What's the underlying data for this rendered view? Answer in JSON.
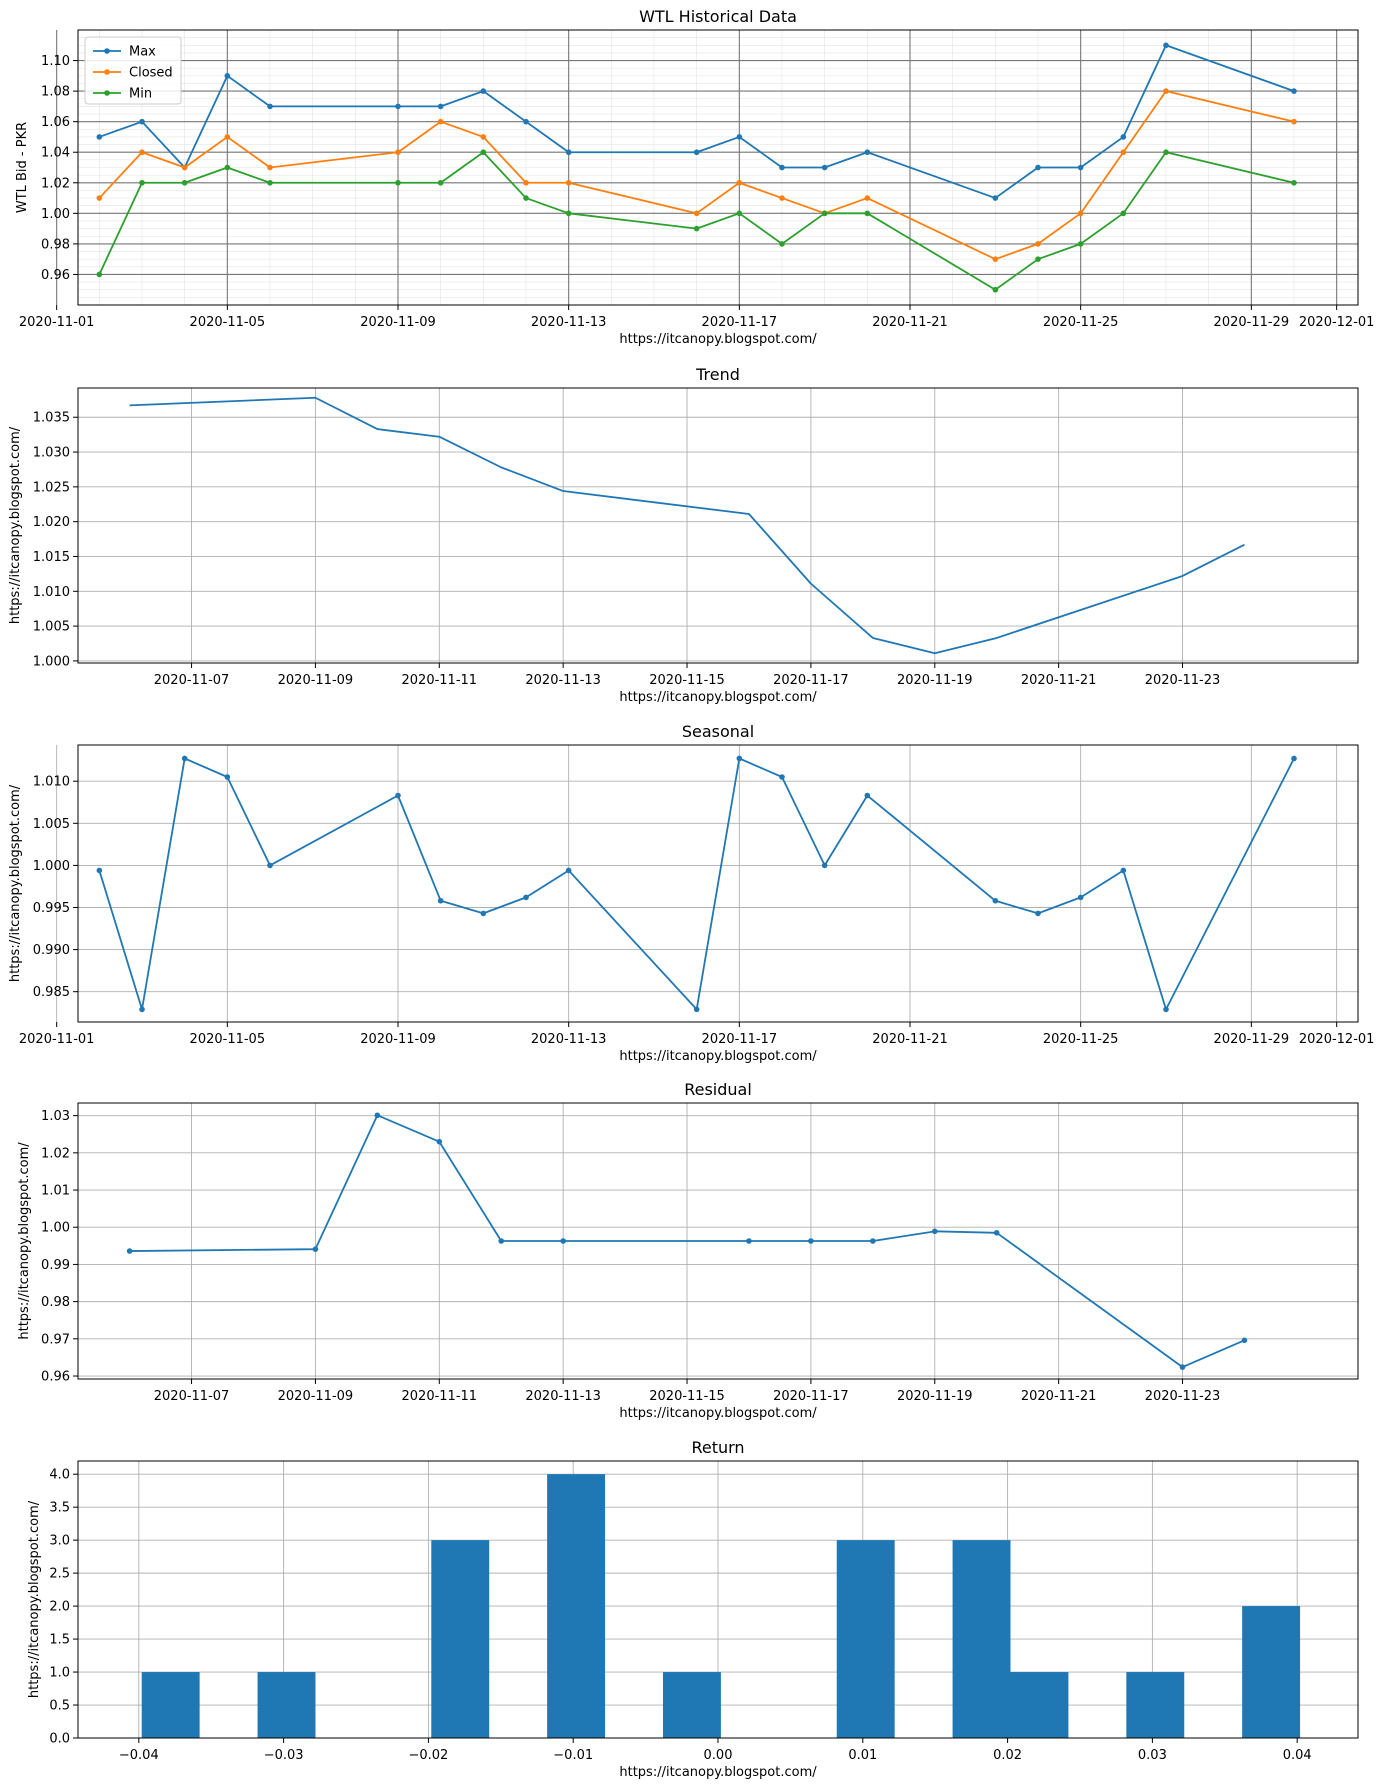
{
  "chart_data": [
    {
      "id": "historical",
      "type": "line",
      "title": "WTL Historical Data",
      "xlabel": "https://itcanopy.blogspot.com/",
      "ylabel": "WTL Bid - PKR",
      "xlim": [
        "2020-11-01T12:00",
        "2020-12-01T12:00"
      ],
      "ylim": [
        0.94,
        1.12
      ],
      "xticks": [
        "2020-11-01",
        "2020-11-05",
        "2020-11-09",
        "2020-11-13",
        "2020-11-17",
        "2020-11-21",
        "2020-11-25",
        "2020-11-29",
        "2020-12-01"
      ],
      "yticks": [
        0.96,
        0.98,
        1.0,
        1.02,
        1.04,
        1.06,
        1.08,
        1.1
      ],
      "ytick_decimals": 2,
      "grid": "major and minor",
      "legend": "top-left",
      "x": [
        "2020-11-02",
        "2020-11-03",
        "2020-11-04",
        "2020-11-05",
        "2020-11-06",
        "2020-11-09",
        "2020-11-10",
        "2020-11-11",
        "2020-11-12",
        "2020-11-13",
        "2020-11-16",
        "2020-11-17",
        "2020-11-18",
        "2020-11-19",
        "2020-11-20",
        "2020-11-23",
        "2020-11-24",
        "2020-11-25",
        "2020-11-26",
        "2020-11-27",
        "2020-11-30"
      ],
      "series": [
        {
          "name": "Max",
          "color": "#1f77b4",
          "values": [
            1.05,
            1.06,
            1.03,
            1.09,
            1.07,
            1.07,
            1.07,
            1.08,
            1.06,
            1.04,
            1.04,
            1.05,
            1.03,
            1.03,
            1.04,
            1.01,
            1.03,
            1.03,
            1.05,
            1.11,
            1.08
          ]
        },
        {
          "name": "Closed",
          "color": "#ff7f0e",
          "values": [
            1.01,
            1.04,
            1.03,
            1.05,
            1.03,
            1.04,
            1.06,
            1.05,
            1.02,
            1.02,
            1.0,
            1.02,
            1.01,
            1.0,
            1.01,
            0.97,
            0.98,
            1.0,
            1.04,
            1.08,
            1.06
          ]
        },
        {
          "name": "Min",
          "color": "#2ca02c",
          "values": [
            0.96,
            1.02,
            1.02,
            1.03,
            1.02,
            1.02,
            1.02,
            1.04,
            1.01,
            1.0,
            0.99,
            1.0,
            0.98,
            1.0,
            1.0,
            0.95,
            0.97,
            0.98,
            1.0,
            1.04,
            1.02
          ]
        }
      ]
    },
    {
      "id": "trend",
      "type": "line",
      "title": "Trend",
      "xlabel": "https://itcanopy.blogspot.com/",
      "ylabel": "https://itcanopy.blogspot.com/",
      "xlim": [
        "2020-11-05T04:00",
        "2020-11-25T20:00"
      ],
      "ylim": [
        0.9997,
        1.0392
      ],
      "xticks": [
        "2020-11-07",
        "2020-11-09",
        "2020-11-11",
        "2020-11-13",
        "2020-11-15",
        "2020-11-17",
        "2020-11-19",
        "2020-11-21",
        "2020-11-23"
      ],
      "yticks": [
        1.0,
        1.005,
        1.01,
        1.015,
        1.02,
        1.025,
        1.03,
        1.035
      ],
      "ytick_decimals": 3,
      "grid": "major",
      "markers": false,
      "x": [
        "2020-11-06",
        "2020-11-09",
        "2020-11-10",
        "2020-11-11",
        "2020-11-12",
        "2020-11-13",
        "2020-11-16",
        "2020-11-17",
        "2020-11-18",
        "2020-11-19",
        "2020-11-20",
        "2020-11-23",
        "2020-11-24"
      ],
      "series": [
        {
          "name": "Trend",
          "color": "#1f77b4",
          "values": [
            1.0367,
            1.0378,
            1.0333,
            1.0322,
            1.0278,
            1.0244,
            1.0211,
            1.0111,
            1.0033,
            1.0011,
            1.0033,
            1.0122,
            1.0167
          ]
        }
      ]
    },
    {
      "id": "seasonal",
      "type": "line",
      "title": "Seasonal",
      "xlabel": "https://itcanopy.blogspot.com/",
      "ylabel": "https://itcanopy.blogspot.com/",
      "xlim": [
        "2020-11-01T12:00",
        "2020-12-01T12:00"
      ],
      "ylim": [
        0.9814,
        1.0143
      ],
      "xticks": [
        "2020-11-01",
        "2020-11-05",
        "2020-11-09",
        "2020-11-13",
        "2020-11-17",
        "2020-11-21",
        "2020-11-25",
        "2020-11-29",
        "2020-12-01"
      ],
      "yticks": [
        0.985,
        0.99,
        0.995,
        1.0,
        1.005,
        1.01
      ],
      "ytick_decimals": 3,
      "grid": "major",
      "markers": true,
      "x": [
        "2020-11-02",
        "2020-11-03",
        "2020-11-04",
        "2020-11-05",
        "2020-11-06",
        "2020-11-09",
        "2020-11-10",
        "2020-11-11",
        "2020-11-12",
        "2020-11-13",
        "2020-11-16",
        "2020-11-17",
        "2020-11-18",
        "2020-11-19",
        "2020-11-20",
        "2020-11-23",
        "2020-11-24",
        "2020-11-25",
        "2020-11-26",
        "2020-11-27",
        "2020-11-30"
      ],
      "series": [
        {
          "name": "Seasonal",
          "color": "#1f77b4",
          "values": [
            0.9994,
            0.9829,
            1.0127,
            1.0105,
            1.0,
            1.0083,
            0.9958,
            0.9943,
            0.9962,
            0.9994,
            0.9829,
            1.0127,
            1.0105,
            1.0,
            1.0083,
            0.9958,
            0.9943,
            0.9962,
            0.9994,
            0.9829,
            1.0127
          ]
        }
      ]
    },
    {
      "id": "residual",
      "type": "line",
      "title": "Residual",
      "xlabel": "https://itcanopy.blogspot.com/",
      "ylabel": "https://itcanopy.blogspot.com/",
      "xlim": [
        "2020-11-05T04:00",
        "2020-11-25T20:00"
      ],
      "ylim": [
        0.9592,
        1.0334
      ],
      "xticks": [
        "2020-11-07",
        "2020-11-09",
        "2020-11-11",
        "2020-11-13",
        "2020-11-15",
        "2020-11-17",
        "2020-11-19",
        "2020-11-21",
        "2020-11-23"
      ],
      "yticks": [
        0.96,
        0.97,
        0.98,
        0.99,
        1.0,
        1.01,
        1.02,
        1.03
      ],
      "ytick_decimals": 2,
      "grid": "major",
      "markers": true,
      "x": [
        "2020-11-06",
        "2020-11-09",
        "2020-11-10",
        "2020-11-11",
        "2020-11-12",
        "2020-11-13",
        "2020-11-16",
        "2020-11-17",
        "2020-11-18",
        "2020-11-19",
        "2020-11-20",
        "2020-11-23",
        "2020-11-24"
      ],
      "series": [
        {
          "name": "Residual",
          "color": "#1f77b4",
          "values": [
            0.9936,
            0.9941,
            1.0301,
            1.023,
            0.9963,
            0.9963,
            0.9963,
            0.9963,
            0.9963,
            0.9989,
            0.9985,
            0.9624,
            0.9696
          ]
        }
      ]
    },
    {
      "id": "return",
      "type": "bar",
      "title": "Return",
      "xlabel": "https://itcanopy.blogspot.com/",
      "ylabel": "https://itcanopy.blogspot.com/",
      "xlim": [
        -0.0442,
        0.0442
      ],
      "ylim": [
        0,
        4.2
      ],
      "xticks": [
        -0.04,
        -0.03,
        -0.02,
        -0.01,
        0.0,
        0.01,
        0.02,
        0.03,
        0.04
      ],
      "xtick_labels": [
        "−0.04",
        "−0.03",
        "−0.02",
        "−0.01",
        "0.00",
        "0.01",
        "0.02",
        "0.03",
        "0.04"
      ],
      "yticks": [
        0.0,
        0.5,
        1.0,
        1.5,
        2.0,
        2.5,
        3.0,
        3.5,
        4.0
      ],
      "ytick_decimals": 1,
      "grid": "major",
      "color": "#1f77b4",
      "bin_width": 0.004,
      "bins": [
        {
          "left": -0.0398,
          "count": 1
        },
        {
          "left": -0.0318,
          "count": 1
        },
        {
          "left": -0.0198,
          "count": 3
        },
        {
          "left": -0.0118,
          "count": 4
        },
        {
          "left": -0.0038,
          "count": 1
        },
        {
          "left": 0.0082,
          "count": 3
        },
        {
          "left": 0.0162,
          "count": 3
        },
        {
          "left": 0.0202,
          "count": 1
        },
        {
          "left": 0.0282,
          "count": 1
        },
        {
          "left": 0.0362,
          "count": 2
        }
      ]
    }
  ]
}
